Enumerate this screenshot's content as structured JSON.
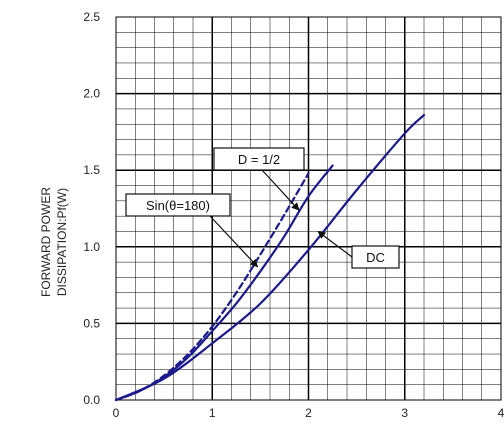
{
  "chart_data": {
    "type": "line",
    "title": "",
    "xlabel": "",
    "ylabel_lines": [
      "FORWARD POWER",
      "DISSIPATION:Pf(W)"
    ],
    "xlim": [
      0,
      4
    ],
    "ylim": [
      0,
      2.5
    ],
    "x_ticks": [
      0,
      1,
      2,
      3,
      4
    ],
    "y_ticks": [
      0,
      0.5,
      1.0,
      1.5,
      2.0,
      2.5
    ],
    "x_tick_labels": [
      "0",
      "1",
      "2",
      "3",
      "4"
    ],
    "y_tick_labels": [
      "0.0",
      "0.5",
      "1.0",
      "1.5",
      "2.0",
      "2.5"
    ],
    "grid": true,
    "line_color": "#1a1a8c",
    "series": [
      {
        "name": "D = 1/2",
        "style": "solid",
        "points": [
          [
            0,
            0
          ],
          [
            0.25,
            0.06
          ],
          [
            0.5,
            0.15
          ],
          [
            0.75,
            0.28
          ],
          [
            1.0,
            0.45
          ],
          [
            1.25,
            0.63
          ],
          [
            1.5,
            0.84
          ],
          [
            1.75,
            1.07
          ],
          [
            2.0,
            1.33
          ],
          [
            2.25,
            1.53
          ]
        ]
      },
      {
        "name": "Sin(θ=180)",
        "style": "dashed",
        "points": [
          [
            0,
            0
          ],
          [
            0.25,
            0.06
          ],
          [
            0.5,
            0.16
          ],
          [
            0.75,
            0.3
          ],
          [
            1.0,
            0.48
          ],
          [
            1.25,
            0.7
          ],
          [
            1.5,
            0.95
          ],
          [
            1.75,
            1.21
          ],
          [
            2.0,
            1.48
          ]
        ]
      },
      {
        "name": "DC",
        "style": "solid",
        "points": [
          [
            0,
            0
          ],
          [
            0.5,
            0.14
          ],
          [
            1.0,
            0.37
          ],
          [
            1.5,
            0.63
          ],
          [
            2.0,
            0.98
          ],
          [
            2.5,
            1.37
          ],
          [
            3.0,
            1.74
          ],
          [
            3.2,
            1.86
          ]
        ]
      }
    ],
    "annotations": [
      {
        "text": "D = 1/2",
        "target": [
          1.9,
          1.24
        ]
      },
      {
        "text": "Sin(θ=180)",
        "target": [
          1.47,
          0.87
        ]
      },
      {
        "text": "DC",
        "target": [
          2.1,
          1.1
        ]
      }
    ]
  }
}
